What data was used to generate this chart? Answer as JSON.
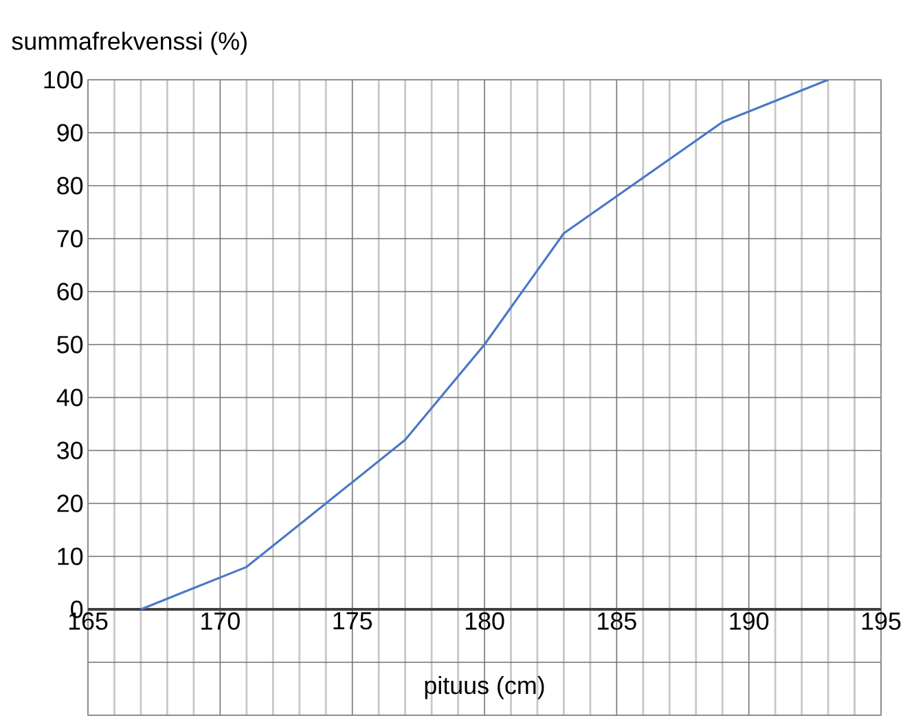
{
  "chart_data": {
    "type": "line",
    "xlabel": "pituus (cm)",
    "ylabel": "summafrekvenssi (%)",
    "x": [
      167,
      171,
      177,
      180,
      183,
      189,
      193
    ],
    "series": [
      {
        "color": "#4a78c8",
        "values": [
          0,
          8,
          32,
          50,
          71,
          92,
          100
        ]
      }
    ],
    "xlim": [
      165,
      195
    ],
    "ylim": [
      -20,
      100
    ],
    "xticks": [
      165,
      170,
      175,
      180,
      185,
      190,
      195
    ],
    "yticks": [
      {
        "value": -20,
        "label": null
      },
      {
        "value": -10,
        "label": null
      },
      0,
      10,
      20,
      30,
      40,
      50,
      60,
      70,
      80,
      90,
      100
    ],
    "grid": true,
    "marker": "none",
    "line_style": "solid"
  }
}
